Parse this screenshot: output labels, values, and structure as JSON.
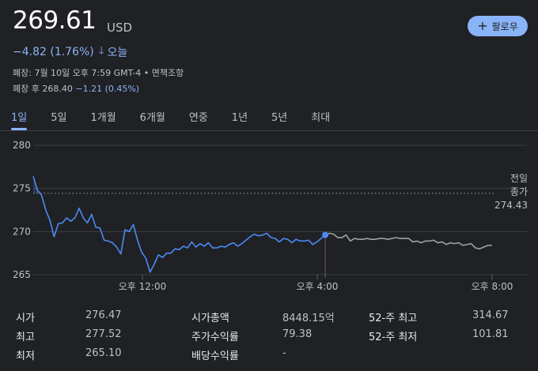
{
  "quote": {
    "price": "269.61",
    "currency": "USD",
    "change": "−4.82 (1.76%)",
    "change_period": "오늘",
    "follow_label": "팔로우",
    "close_info": "폐장: 7월 10일 오후 7:59 GMT-4 • 면책조항",
    "after_hours_label": "폐장 후",
    "after_hours_price": "268.40",
    "after_hours_change": "−1.21 (0.45%)"
  },
  "tabs": [
    "1일",
    "5일",
    "1개월",
    "6개월",
    "연중",
    "1년",
    "5년",
    "최대"
  ],
  "active_tab": "1일",
  "chart_data": {
    "type": "line",
    "title": "",
    "xlabel": "",
    "ylabel": "",
    "y_ticks": [
      "280",
      "275",
      "270",
      "265"
    ],
    "ylim": [
      264,
      281
    ],
    "x_ticks": [
      "오후 12:00",
      "오후 4:00",
      "오후 8:00"
    ],
    "prev_close_label_1": "전일",
    "prev_close_label_2": "종가",
    "prev_close_value": "274.43",
    "prev_close": 274.43,
    "colors": {
      "regular": "#4a8af4",
      "extended": "#9aa0a6",
      "marker": "#4a8af4"
    },
    "series": [
      {
        "values": [
          276.4,
          274.8,
          274.2,
          272.5,
          271.3,
          269.4,
          270.9,
          271.0,
          271.6,
          271.2,
          271.6,
          272.7,
          271.6,
          271.0,
          272.0,
          270.5,
          270.4,
          269.0,
          268.9,
          268.7,
          268.2,
          267.4,
          270.2,
          270.0,
          270.8,
          269.0,
          267.6,
          266.9,
          265.3,
          266.2,
          267.3,
          267.0,
          267.5,
          267.5,
          268.0,
          267.9,
          268.3,
          268.1,
          268.8,
          268.2,
          268.6,
          268.3,
          268.7,
          268.1,
          268.1,
          268.3,
          268.2,
          268.5,
          268.7,
          268.3,
          268.6,
          269.0,
          269.4,
          269.7,
          269.5,
          269.6,
          269.8,
          269.3,
          269.2,
          268.8,
          269.2,
          269.1,
          268.7,
          269.1,
          268.9,
          268.9,
          269.0,
          268.5,
          268.8,
          269.2,
          269.61
        ]
      },
      {
        "values": [
          269.61,
          269.8,
          269.7,
          269.3,
          269.3,
          269.6,
          268.9,
          269.2,
          269.1,
          269.1,
          269.2,
          269.1,
          269.1,
          269.2,
          269.2,
          269.1,
          269.2,
          269.3,
          269.2,
          269.2,
          269.2,
          268.8,
          268.9,
          268.7,
          268.9,
          268.9,
          269.0,
          268.7,
          268.8,
          268.5,
          268.7,
          268.6,
          268.7,
          268.4,
          268.5,
          268.6,
          268.1,
          268.0,
          268.2,
          268.4,
          268.4
        ]
      }
    ]
  },
  "stats": [
    {
      "label": "시가",
      "value": "276.47"
    },
    {
      "label": "최고",
      "value": "277.52"
    },
    {
      "label": "최저",
      "value": "265.10"
    },
    {
      "label": "시가총액",
      "value": "8448.15억"
    },
    {
      "label": "주가수익률",
      "value": "79.38"
    },
    {
      "label": "배당수익률",
      "value": "-"
    },
    {
      "label": "52-주 최고",
      "value": "314.67"
    },
    {
      "label": "52-주 최저",
      "value": "101.81"
    }
  ]
}
